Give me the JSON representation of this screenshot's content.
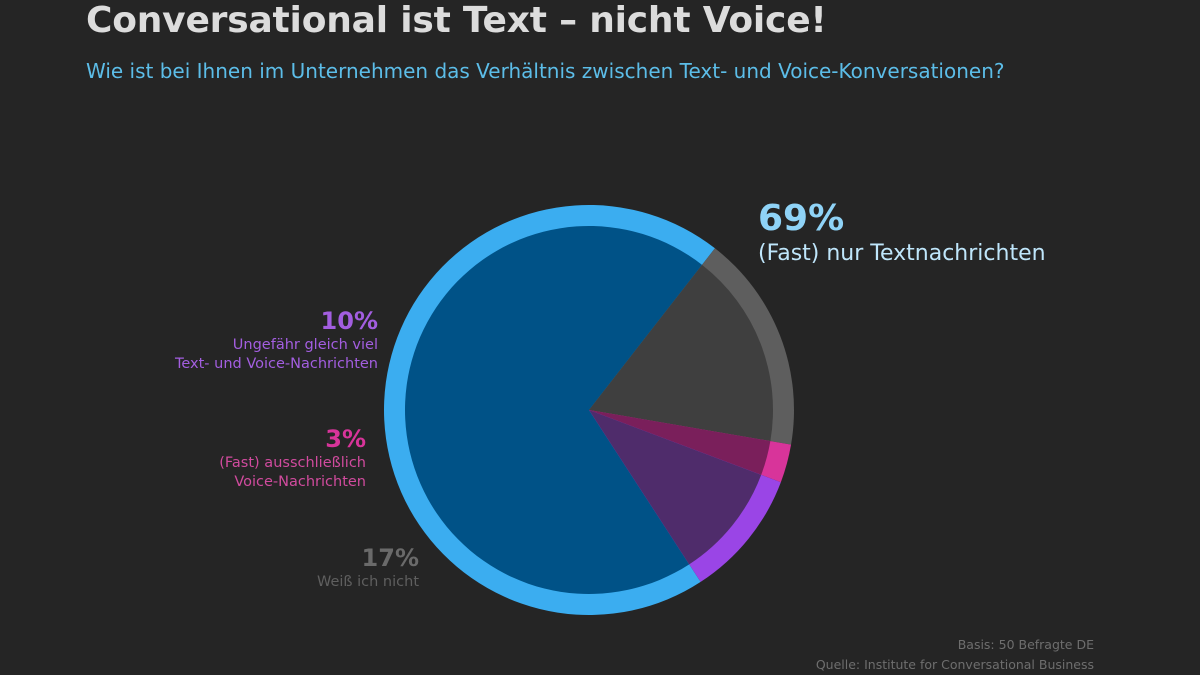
{
  "header": {
    "title": "Conversational ist Text – nicht Voice!",
    "subtitle": "Wie ist bei Ihnen im Unternehmen das Verhältnis zwischen Text- und Voice-Konversationen?"
  },
  "chart_data": {
    "type": "pie",
    "title": "",
    "slices": [
      {
        "key": "text",
        "percent_label": "69%",
        "label_lines": [
          "(Fast) nur Textnachrichten"
        ],
        "value": 69,
        "ring_color": "#3badf0",
        "fill_color": "#005287",
        "label_color": "#bfe6fb",
        "pct_color": "#8fd3f7"
      },
      {
        "key": "unknown",
        "percent_label": "17%",
        "label_lines": [
          "Weiß ich nicht"
        ],
        "value": 17,
        "ring_color": "#5e5e5e",
        "fill_color": "#3f3f3f",
        "label_color": "#5f5f5f",
        "pct_color": "#6a6a6a"
      },
      {
        "key": "voice",
        "percent_label": "3%",
        "label_lines": [
          "(Fast) ausschließlich",
          "Voice-Nachrichten"
        ],
        "value": 3,
        "ring_color": "#d8349a",
        "fill_color": "#7a1f5b",
        "label_color": "#d14b9e",
        "pct_color": "#d8349a"
      },
      {
        "key": "equal",
        "percent_label": "10%",
        "label_lines": [
          "Ungefähr gleich viel",
          "Text- und Voice-Nachrichten"
        ],
        "value": 10,
        "ring_color": "#9a45e6",
        "fill_color": "#4f2c6b",
        "label_color": "#a35ee0",
        "pct_color": "#a35ee0"
      }
    ]
  },
  "footer": {
    "basis": "Basis: 50 Befragte DE",
    "source": "Quelle: Institute for Conversational Business"
  }
}
